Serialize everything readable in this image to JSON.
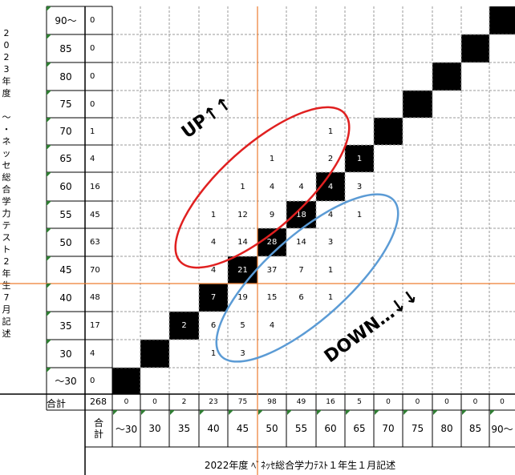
{
  "vertical_title": "2\n0\n2\n3\n年\n度\n\n〜\n・\nネ\nッ\nセ\n総\n合\n学\n力\nテ\nス\nト\n2\n年\n生\n7\n月\n記\n述",
  "bottom_title": "2022年度 ﾍﾞﾈｯｾ総合学力ﾃｽﾄ１年生１月記述",
  "total_label": "合計",
  "total_value": "268",
  "col_total_label": "合\n計",
  "row_labels": [
    "90〜",
    "85",
    "80",
    "75",
    "70",
    "65",
    "60",
    "55",
    "50",
    "45",
    "40",
    "35",
    "30",
    "〜30"
  ],
  "row_counts": [
    "0",
    "0",
    "0",
    "0",
    "1",
    "4",
    "16",
    "45",
    "63",
    "70",
    "48",
    "17",
    "4",
    "0"
  ],
  "col_labels": [
    "〜30",
    "30",
    "35",
    "40",
    "45",
    "50",
    "55",
    "60",
    "65",
    "70",
    "75",
    "80",
    "85",
    "90〜"
  ],
  "col_totals": [
    "0",
    "0",
    "2",
    "23",
    "75",
    "98",
    "49",
    "16",
    "5",
    "0",
    "0",
    "0",
    "0",
    "0"
  ],
  "matrix": [
    [
      "",
      "",
      "",
      "",
      "",
      "",
      "",
      "",
      "",
      "",
      "",
      "",
      "",
      ""
    ],
    [
      "",
      "",
      "",
      "",
      "",
      "",
      "",
      "",
      "",
      "",
      "",
      "",
      "",
      ""
    ],
    [
      "",
      "",
      "",
      "",
      "",
      "",
      "",
      "",
      "",
      "",
      "",
      "",
      "",
      ""
    ],
    [
      "",
      "",
      "",
      "",
      "",
      "",
      "",
      "",
      "",
      "",
      "",
      "",
      "",
      ""
    ],
    [
      "",
      "",
      "",
      "",
      "",
      "",
      "",
      "1",
      "",
      "",
      "",
      "",
      "",
      ""
    ],
    [
      "",
      "",
      "",
      "",
      "",
      "1",
      "",
      "2",
      "1",
      "",
      "",
      "",
      "",
      ""
    ],
    [
      "",
      "",
      "",
      "",
      "1",
      "4",
      "4",
      "4",
      "3",
      "",
      "",
      "",
      "",
      ""
    ],
    [
      "",
      "",
      "",
      "1",
      "12",
      "9",
      "18",
      "4",
      "1",
      "",
      "",
      "",
      "",
      ""
    ],
    [
      "",
      "",
      "",
      "4",
      "14",
      "28",
      "14",
      "3",
      "",
      "",
      "",
      "",
      "",
      ""
    ],
    [
      "",
      "",
      "",
      "4",
      "21",
      "37",
      "7",
      "1",
      "",
      "",
      "",
      "",
      "",
      ""
    ],
    [
      "",
      "",
      "",
      "7",
      "19",
      "15",
      "6",
      "1",
      "",
      "",
      "",
      "",
      "",
      ""
    ],
    [
      "",
      "",
      "2",
      "6",
      "5",
      "4",
      "",
      "",
      "",
      "",
      "",
      "",
      "",
      ""
    ],
    [
      "",
      "",
      "",
      "1",
      "3",
      "",
      "",
      "",
      "",
      "",
      "",
      "",
      "",
      ""
    ],
    [
      "",
      "",
      "",
      "",
      "",
      "",
      "",
      "",
      "",
      "",
      "",
      "",
      "",
      ""
    ]
  ],
  "annotations": {
    "up": "UP↑↑",
    "down": "DOWN…↓↓"
  },
  "colors": {
    "red_ellipse": "#e02020",
    "blue_ellipse": "#5b9bd5",
    "orange_line": "#ed7d31",
    "marker": "#2e7d32"
  }
}
